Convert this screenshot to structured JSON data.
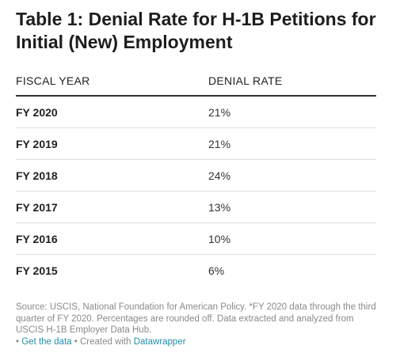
{
  "chart_data": {
    "type": "table",
    "title": "Table 1: Denial Rate for H-1B Petitions for Initial (New) Employment",
    "columns": [
      "FISCAL YEAR",
      "DENIAL RATE"
    ],
    "rows": [
      {
        "fiscal_year": "FY 2020",
        "denial_rate": "21%",
        "value": 21
      },
      {
        "fiscal_year": "FY 2019",
        "denial_rate": "21%",
        "value": 21
      },
      {
        "fiscal_year": "FY 2018",
        "denial_rate": "24%",
        "value": 24
      },
      {
        "fiscal_year": "FY 2017",
        "denial_rate": "13%",
        "value": 13
      },
      {
        "fiscal_year": "FY 2016",
        "denial_rate": "10%",
        "value": 10
      },
      {
        "fiscal_year": "FY 2015",
        "denial_rate": "6%",
        "value": 6
      }
    ]
  },
  "notes": "Source: USCIS, National Foundation for American Policy. *FY 2020 data through the third quarter of FY 2020. Percentages are rounded off. Data extracted and analyzed from USCIS H-1B Employer Data Hub.",
  "footer": {
    "bullet": "•",
    "get_data_label": "Get the data",
    "separator": "• Created with",
    "created_with_label": "Datawrapper",
    "link_color": "#1f8fa8"
  }
}
